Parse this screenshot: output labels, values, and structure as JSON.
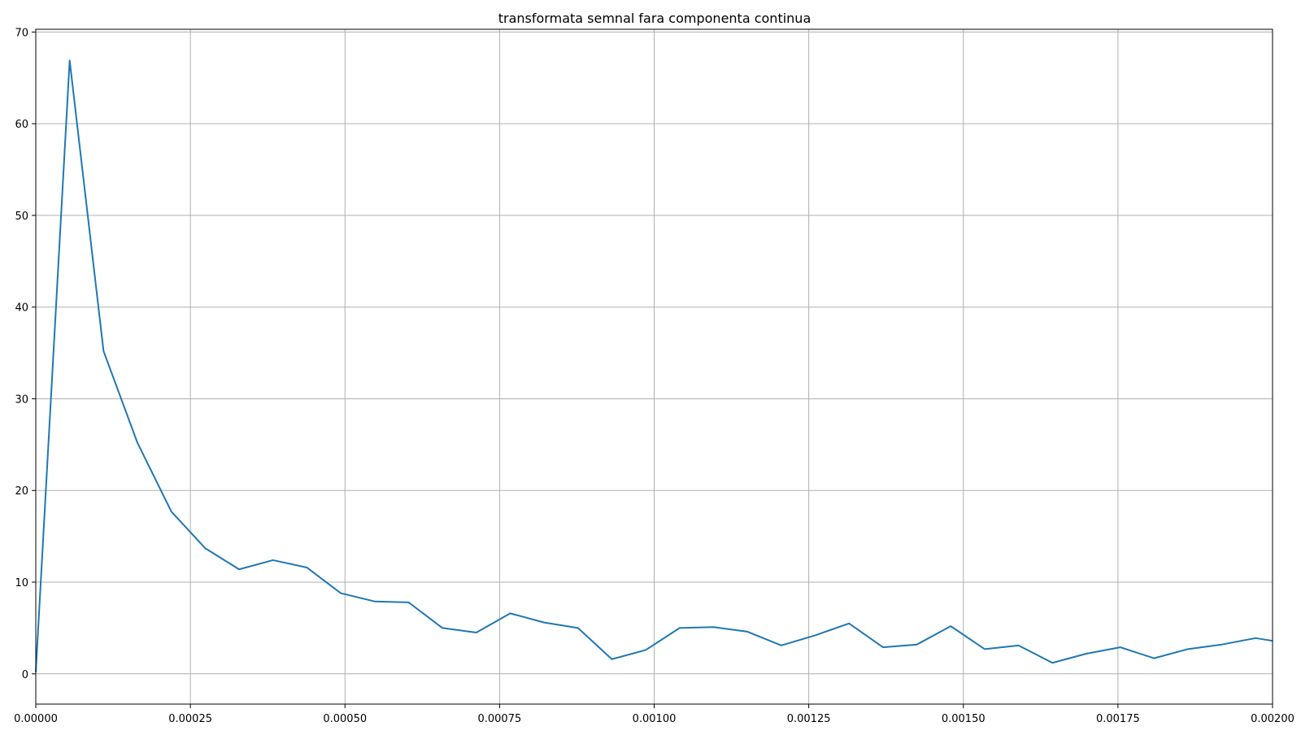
{
  "chart_data": {
    "type": "line",
    "title": "transformata semnal fara componenta continua",
    "xlabel": "",
    "ylabel": "",
    "xlim": [
      0.0,
      0.002
    ],
    "ylim": [
      -3.3,
      70.3
    ],
    "grid": true,
    "x_ticks": [
      0.0,
      0.00025,
      0.0005,
      0.00075,
      0.001,
      0.00125,
      0.0015,
      0.00175,
      0.002
    ],
    "x_tick_labels": [
      "0.00000",
      "0.00025",
      "0.00050",
      "0.00075",
      "0.00100",
      "0.00125",
      "0.00150",
      "0.00175",
      "0.00200"
    ],
    "y_ticks": [
      0,
      10,
      20,
      30,
      40,
      50,
      60,
      70
    ],
    "y_tick_labels": [
      "0",
      "10",
      "20",
      "30",
      "40",
      "50",
      "60",
      "70"
    ],
    "line_color": "#1f77b4",
    "series": [
      {
        "x": [
          0.0,
          5.48e-05,
          0.0001096,
          0.0001644,
          0.0002192,
          0.000274,
          0.0003288,
          0.0003836,
          0.0004384,
          0.0004932,
          0.000548,
          0.0006028,
          0.0006576,
          0.0007124,
          0.0007672,
          0.000822,
          0.0008768,
          0.0009316,
          0.0009864,
          0.0010412,
          0.001096,
          0.0011508,
          0.0012056,
          0.0012604,
          0.0013152,
          0.00137,
          0.0014248,
          0.0014796,
          0.0015344,
          0.0015892,
          0.001644,
          0.0016988,
          0.0017536,
          0.0018084,
          0.0018632,
          0.001918,
          0.0019728,
          0.002
        ],
        "values": [
          0.2,
          66.9,
          35.2,
          25.2,
          17.7,
          13.7,
          11.4,
          12.4,
          11.6,
          8.8,
          7.9,
          7.8,
          5.0,
          4.5,
          6.6,
          5.6,
          5.0,
          1.6,
          2.6,
          5.0,
          5.1,
          4.6,
          3.1,
          4.2,
          5.5,
          2.9,
          3.2,
          5.2,
          2.7,
          3.1,
          1.2,
          2.2,
          2.9,
          1.7,
          2.7,
          3.2,
          3.9,
          3.6
        ]
      }
    ]
  }
}
